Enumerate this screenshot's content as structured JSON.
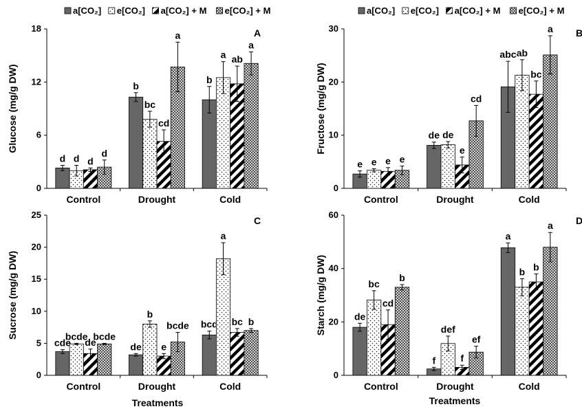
{
  "legend": [
    "a[CO₂]",
    "e[CO₂]",
    "a[CO₂] + M",
    "e[CO₂] + M"
  ],
  "x_title": "Treatments",
  "chart_data": [
    {
      "type": "bar",
      "panel_letter": "A",
      "ylabel": "Glucose (mg/g DW)",
      "ylim": [
        0,
        18
      ],
      "yticks": [
        0,
        6,
        12,
        18
      ],
      "categories": [
        "Control",
        "Drought",
        "Cold"
      ],
      "series": [
        {
          "name": "a[CO₂]",
          "values": [
            2.3,
            10.3,
            10.0
          ],
          "errors": [
            0.3,
            0.5,
            1.5
          ],
          "letters": [
            "d",
            "b",
            "b"
          ]
        },
        {
          "name": "e[CO₂]",
          "values": [
            2.0,
            7.8,
            12.5
          ],
          "errors": [
            0.6,
            0.9,
            1.8
          ],
          "letters": [
            "d",
            "bc",
            "a"
          ]
        },
        {
          "name": "a[CO₂] + M",
          "values": [
            2.1,
            5.3,
            11.8
          ],
          "errors": [
            0.2,
            1.3,
            2.0
          ],
          "letters": [
            "d",
            "cd",
            "ab"
          ]
        },
        {
          "name": "e[CO₂] + M",
          "values": [
            2.4,
            13.7,
            14.1
          ],
          "errors": [
            0.8,
            2.8,
            1.3
          ],
          "letters": [
            "d",
            "a",
            "a"
          ]
        }
      ]
    },
    {
      "type": "bar",
      "panel_letter": "B",
      "ylabel": "Fructose (mg/g DW)",
      "ylim": [
        0,
        30
      ],
      "yticks": [
        0,
        10,
        20,
        30
      ],
      "categories": [
        "Control",
        "Drought",
        "Cold"
      ],
      "series": [
        {
          "name": "a[CO₂]",
          "values": [
            2.7,
            8.1,
            19.1
          ],
          "errors": [
            0.6,
            0.6,
            4.8
          ],
          "letters": [
            "e",
            "de",
            "abc"
          ]
        },
        {
          "name": "e[CO₂]",
          "values": [
            3.4,
            8.2,
            21.3
          ],
          "errors": [
            0.3,
            0.6,
            2.9
          ],
          "letters": [
            "e",
            "de",
            "ab"
          ]
        },
        {
          "name": "a[CO₂] + M",
          "values": [
            3.2,
            4.4,
            17.7
          ],
          "errors": [
            0.7,
            1.5,
            2.5
          ],
          "letters": [
            "e",
            "e",
            "bc"
          ]
        },
        {
          "name": "e[CO₂] + M",
          "values": [
            3.4,
            12.7,
            25.1
          ],
          "errors": [
            0.8,
            2.9,
            3.6
          ],
          "letters": [
            "e",
            "cd",
            "a"
          ]
        }
      ]
    },
    {
      "type": "bar",
      "panel_letter": "C",
      "ylabel": "Sucrose (mg/g DW)",
      "ylim": [
        0,
        25
      ],
      "yticks": [
        0,
        5,
        10,
        15,
        20,
        25
      ],
      "categories": [
        "Control",
        "Drought",
        "Cold"
      ],
      "series": [
        {
          "name": "a[CO₂]",
          "values": [
            3.7,
            3.2,
            6.3
          ],
          "errors": [
            0.3,
            0.2,
            0.6
          ],
          "letters": [
            "cde",
            "de",
            "bcd"
          ]
        },
        {
          "name": "e[CO₂]",
          "values": [
            4.9,
            8.0,
            18.2
          ],
          "errors": [
            0.1,
            0.5,
            2.5
          ],
          "letters": [
            "bcde",
            "b",
            "a"
          ]
        },
        {
          "name": "a[CO₂] + M",
          "values": [
            3.4,
            3.0,
            6.7
          ],
          "errors": [
            0.7,
            0.4,
            0.6
          ],
          "letters": [
            "de",
            "e",
            "bc"
          ]
        },
        {
          "name": "e[CO₂] + M",
          "values": [
            4.9,
            5.2,
            7.0
          ],
          "errors": [
            0.1,
            1.5,
            0.3
          ],
          "letters": [
            "bcde",
            "bcde",
            "b"
          ]
        }
      ]
    },
    {
      "type": "bar",
      "panel_letter": "D",
      "ylabel": "Starch (mg/g DW)",
      "ylim": [
        0,
        60
      ],
      "yticks": [
        0,
        20,
        40,
        60
      ],
      "categories": [
        "Control",
        "Drought",
        "Cold"
      ],
      "series": [
        {
          "name": "a[CO₂]",
          "values": [
            18.0,
            2.4,
            47.8
          ],
          "errors": [
            1.5,
            0.6,
            1.8
          ],
          "letters": [
            "de",
            "f",
            "a"
          ]
        },
        {
          "name": "e[CO₂]",
          "values": [
            28.2,
            11.9,
            33.0
          ],
          "errors": [
            3.5,
            2.8,
            3.2
          ],
          "letters": [
            "bc",
            "def",
            "b"
          ]
        },
        {
          "name": "a[CO₂] + M",
          "values": [
            19.0,
            3.0,
            35.0
          ],
          "errors": [
            5.5,
            0.8,
            3.0
          ],
          "letters": [
            "cd",
            "f",
            "b"
          ]
        },
        {
          "name": "e[CO₂] + M",
          "values": [
            33.0,
            8.7,
            48.0
          ],
          "errors": [
            1.0,
            2.2,
            5.5
          ],
          "letters": [
            "b",
            "ef",
            "a"
          ]
        }
      ]
    }
  ]
}
